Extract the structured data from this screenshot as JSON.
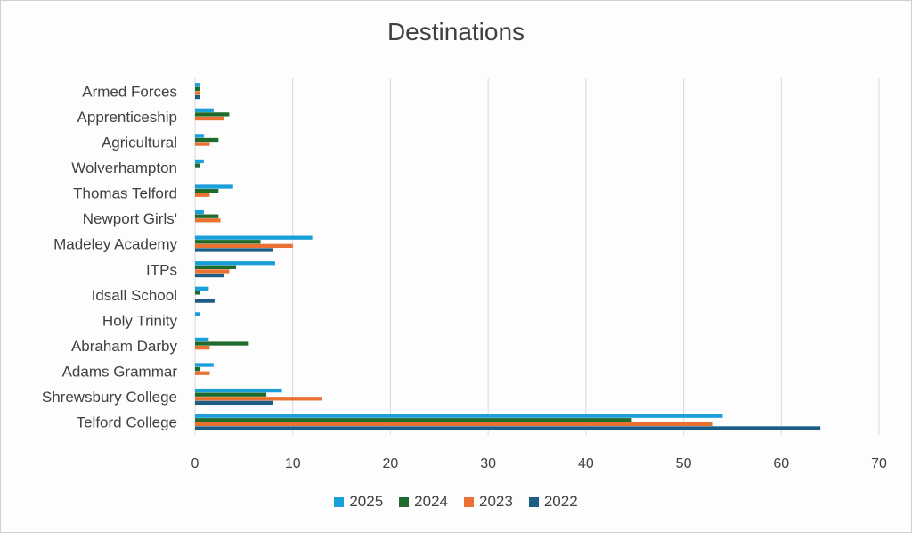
{
  "chart_data": {
    "type": "bar",
    "orientation": "horizontal",
    "title": "Destinations",
    "xlabel": "",
    "ylabel": "",
    "xlim": [
      0,
      70
    ],
    "xticks": [
      0,
      10,
      20,
      30,
      40,
      50,
      60,
      70
    ],
    "grid": true,
    "legend_position": "bottom",
    "categories": [
      "Armed Forces",
      "Apprenticeship",
      "Agricultural",
      "Wolverhampton",
      "Thomas Telford",
      "Newport Girls'",
      "Madeley Academy",
      "ITPs",
      "Idsall School",
      "Holy Trinity",
      "Abraham Darby",
      "Adams Grammar",
      "Shrewsbury College",
      "Telford College"
    ],
    "series": [
      {
        "name": "2025",
        "color": "#1a9fd9",
        "values": [
          0.5,
          1.9,
          0.9,
          0.9,
          3.9,
          0.9,
          12.0,
          8.2,
          1.4,
          0.5,
          1.4,
          1.9,
          8.9,
          54
        ]
      },
      {
        "name": "2024",
        "color": "#1e6b2b",
        "values": [
          0.5,
          3.5,
          2.4,
          0.5,
          2.4,
          2.4,
          6.7,
          4.2,
          0.5,
          0,
          5.5,
          0.5,
          7.3,
          44.7
        ]
      },
      {
        "name": "2023",
        "color": "#e97132",
        "values": [
          0.5,
          3.0,
          1.5,
          0,
          1.5,
          2.6,
          10.0,
          3.5,
          0,
          0,
          1.5,
          1.5,
          13,
          53
        ]
      },
      {
        "name": "2022",
        "color": "#1c5d86",
        "values": [
          0.5,
          0,
          0,
          0,
          0,
          0,
          8.0,
          3.0,
          2.0,
          0,
          0,
          0,
          8.0,
          64
        ]
      }
    ]
  }
}
